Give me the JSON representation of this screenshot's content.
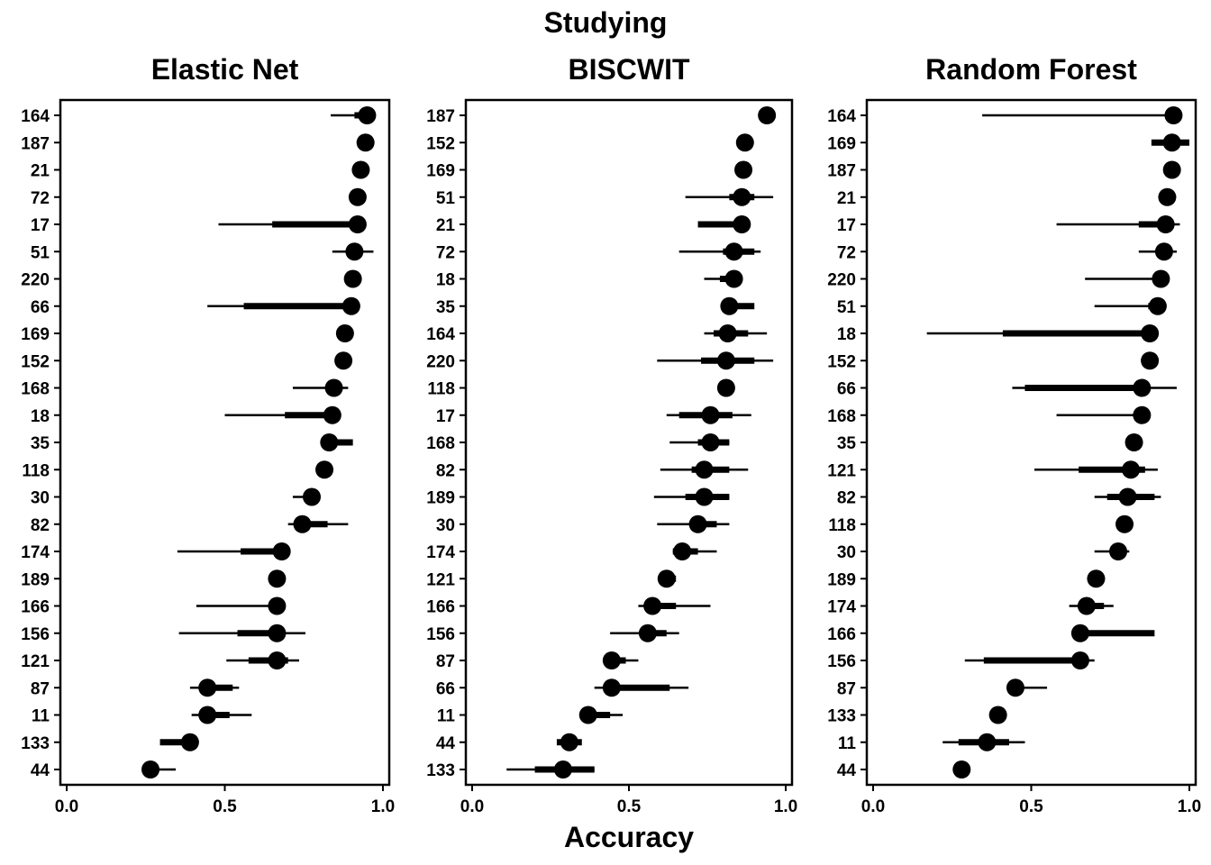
{
  "figure": {
    "title": "Studying",
    "xlabel": "Accuracy"
  },
  "chart_data": [
    {
      "type": "scatter",
      "title": "Elastic Net",
      "xlabel": "Accuracy",
      "xlim": [
        -0.02,
        1.02
      ],
      "xticks": [
        "0.0",
        "0.5",
        "1.0"
      ],
      "grid": false,
      "categories": [
        "164",
        "187",
        "21",
        "72",
        "17",
        "51",
        "220",
        "66",
        "169",
        "152",
        "168",
        "18",
        "35",
        "118",
        "30",
        "82",
        "174",
        "189",
        "166",
        "156",
        "121",
        "87",
        "11",
        "133",
        "44"
      ],
      "values": [
        0.95,
        0.945,
        0.93,
        0.92,
        0.92,
        0.91,
        0.905,
        0.9,
        0.88,
        0.875,
        0.845,
        0.84,
        0.83,
        0.815,
        0.775,
        0.745,
        0.68,
        0.665,
        0.665,
        0.665,
        0.665,
        0.445,
        0.445,
        0.39,
        0.265
      ],
      "inner_interval": [
        [
          0.91,
          0.975
        ],
        null,
        null,
        null,
        [
          0.65,
          0.92
        ],
        [
          0.9,
          0.93
        ],
        null,
        [
          0.56,
          0.9
        ],
        null,
        null,
        null,
        [
          0.69,
          0.84
        ],
        [
          0.83,
          0.905
        ],
        null,
        null,
        [
          0.72,
          0.825
        ],
        [
          0.55,
          0.68
        ],
        null,
        null,
        [
          0.54,
          0.69
        ],
        [
          0.575,
          0.7
        ],
        [
          0.43,
          0.525
        ],
        [
          0.43,
          0.515
        ],
        [
          0.295,
          0.39
        ],
        null
      ],
      "outer_interval": [
        [
          0.835,
          0.975
        ],
        null,
        null,
        null,
        [
          0.48,
          0.92
        ],
        [
          0.84,
          0.97
        ],
        null,
        [
          0.445,
          0.9
        ],
        null,
        null,
        [
          0.715,
          0.89
        ],
        [
          0.5,
          0.84
        ],
        null,
        null,
        [
          0.715,
          0.775
        ],
        [
          0.7,
          0.89
        ],
        [
          0.35,
          0.68
        ],
        null,
        [
          0.41,
          0.665
        ],
        [
          0.355,
          0.755
        ],
        [
          0.505,
          0.735
        ],
        [
          0.39,
          0.545
        ],
        [
          0.395,
          0.585
        ],
        null,
        [
          0.265,
          0.345
        ]
      ]
    },
    {
      "type": "scatter",
      "title": "BISCWIT",
      "xlabel": "Accuracy",
      "xlim": [
        -0.02,
        1.02
      ],
      "xticks": [
        "0.0",
        "0.5",
        "1.0"
      ],
      "grid": false,
      "categories": [
        "187",
        "152",
        "169",
        "51",
        "21",
        "72",
        "18",
        "35",
        "164",
        "220",
        "118",
        "17",
        "168",
        "82",
        "189",
        "30",
        "174",
        "121",
        "166",
        "156",
        "87",
        "66",
        "11",
        "44",
        "133"
      ],
      "values": [
        0.94,
        0.87,
        0.865,
        0.86,
        0.86,
        0.835,
        0.835,
        0.82,
        0.815,
        0.81,
        0.81,
        0.76,
        0.76,
        0.74,
        0.74,
        0.72,
        0.67,
        0.62,
        0.575,
        0.56,
        0.445,
        0.445,
        0.37,
        0.31,
        0.29
      ],
      "inner_interval": [
        null,
        null,
        null,
        [
          0.82,
          0.9
        ],
        [
          0.72,
          0.86
        ],
        [
          0.8,
          0.9
        ],
        [
          0.79,
          0.84
        ],
        [
          0.82,
          0.9
        ],
        [
          0.77,
          0.88
        ],
        [
          0.73,
          0.9
        ],
        null,
        [
          0.66,
          0.83
        ],
        [
          0.72,
          0.82
        ],
        [
          0.7,
          0.82
        ],
        [
          0.68,
          0.82
        ],
        [
          0.7,
          0.78
        ],
        [
          0.64,
          0.72
        ],
        [
          0.6,
          0.65
        ],
        [
          0.56,
          0.65
        ],
        [
          0.55,
          0.62
        ],
        [
          0.445,
          0.49
        ],
        [
          0.445,
          0.63
        ],
        [
          0.37,
          0.44
        ],
        [
          0.27,
          0.35
        ],
        [
          0.2,
          0.39
        ]
      ],
      "outer_interval": [
        null,
        null,
        null,
        [
          0.68,
          0.96
        ],
        null,
        [
          0.66,
          0.92
        ],
        [
          0.74,
          0.84
        ],
        null,
        [
          0.74,
          0.94
        ],
        [
          0.59,
          0.96
        ],
        null,
        [
          0.62,
          0.89
        ],
        [
          0.63,
          0.82
        ],
        [
          0.6,
          0.88
        ],
        [
          0.58,
          0.82
        ],
        [
          0.59,
          0.82
        ],
        [
          0.64,
          0.78
        ],
        null,
        [
          0.53,
          0.76
        ],
        [
          0.44,
          0.66
        ],
        [
          0.445,
          0.53
        ],
        [
          0.39,
          0.69
        ],
        [
          0.37,
          0.48
        ],
        null,
        [
          0.11,
          0.39
        ]
      ]
    },
    {
      "type": "scatter",
      "title": "Random Forest",
      "xlabel": "Accuracy",
      "xlim": [
        -0.02,
        1.02
      ],
      "xticks": [
        "0.0",
        "0.5",
        "1.0"
      ],
      "grid": false,
      "categories": [
        "164",
        "169",
        "187",
        "21",
        "17",
        "72",
        "220",
        "51",
        "18",
        "152",
        "66",
        "168",
        "35",
        "121",
        "82",
        "118",
        "30",
        "189",
        "174",
        "166",
        "156",
        "87",
        "133",
        "11",
        "44"
      ],
      "values": [
        0.95,
        0.945,
        0.945,
        0.93,
        0.925,
        0.92,
        0.91,
        0.9,
        0.875,
        0.875,
        0.85,
        0.85,
        0.825,
        0.815,
        0.805,
        0.795,
        0.775,
        0.705,
        0.675,
        0.655,
        0.655,
        0.45,
        0.395,
        0.36,
        0.28
      ],
      "inner_interval": [
        null,
        [
          0.88,
          1.0
        ],
        null,
        null,
        [
          0.84,
          0.925
        ],
        [
          0.9,
          0.93
        ],
        null,
        [
          0.87,
          0.9
        ],
        [
          0.41,
          0.875
        ],
        null,
        [
          0.48,
          0.85
        ],
        null,
        null,
        [
          0.65,
          0.86
        ],
        [
          0.74,
          0.89
        ],
        [
          0.78,
          0.81
        ],
        null,
        null,
        [
          0.66,
          0.73
        ],
        [
          0.655,
          0.89
        ],
        [
          0.35,
          0.655
        ],
        null,
        null,
        [
          0.27,
          0.43
        ],
        null
      ],
      "outer_interval": [
        [
          0.345,
          0.95
        ],
        null,
        null,
        null,
        [
          0.58,
          0.97
        ],
        [
          0.84,
          0.96
        ],
        [
          0.67,
          0.91
        ],
        [
          0.7,
          0.91
        ],
        [
          0.17,
          0.875
        ],
        null,
        [
          0.44,
          0.96
        ],
        [
          0.58,
          0.85
        ],
        null,
        [
          0.51,
          0.9
        ],
        [
          0.7,
          0.91
        ],
        null,
        [
          0.7,
          0.81
        ],
        null,
        [
          0.62,
          0.76
        ],
        null,
        [
          0.29,
          0.7
        ],
        [
          0.45,
          0.55
        ],
        null,
        [
          0.22,
          0.48
        ],
        null
      ]
    }
  ]
}
